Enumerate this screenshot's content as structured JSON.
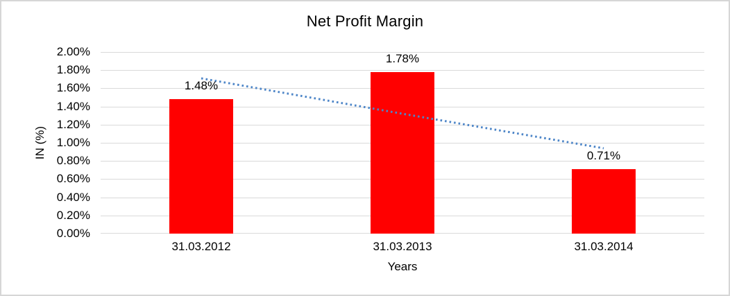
{
  "frame": {
    "background": "#FFFFFF",
    "border_color": "#D6D6D6"
  },
  "chart_data": {
    "type": "bar",
    "title": "Net Profit Margin",
    "xlabel": "Years",
    "ylabel": "IN (%)",
    "categories": [
      "31.03.2012",
      "31.03.2013",
      "31.03.2014"
    ],
    "values": [
      1.48,
      1.78,
      0.71
    ],
    "data_labels": [
      "1.48%",
      "1.78%",
      "0.71%"
    ],
    "ylim": [
      0,
      2
    ],
    "ytick_step": 0.2,
    "ytick_labels": [
      "0.00%",
      "0.20%",
      "0.40%",
      "0.60%",
      "0.80%",
      "1.00%",
      "1.20%",
      "1.40%",
      "1.60%",
      "1.80%",
      "2.00%"
    ],
    "grid": true,
    "legend": "none",
    "bar_color": "#FF0000",
    "gridline_color": "#D9D9D9",
    "text_color": "#000000",
    "trendline": {
      "type": "linear",
      "style": "dotted",
      "color": "#4E86C8",
      "values": [
        1.71,
        1.32,
        0.94
      ]
    }
  }
}
